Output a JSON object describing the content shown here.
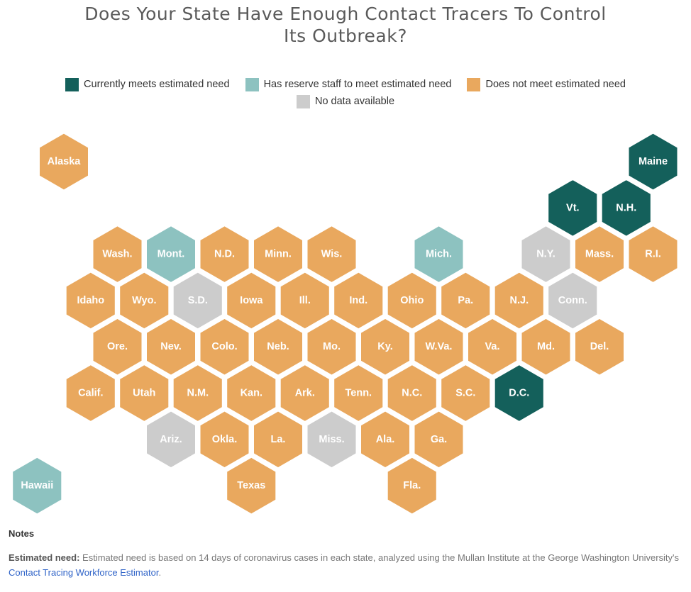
{
  "title_line1": "Does Your State Have Enough Contact Tracers To Control",
  "title_line2": "Its Outbreak?",
  "colors": {
    "meets": "#14605b",
    "reserve": "#8dc2c0",
    "not_meets": "#e9a85e",
    "no_data": "#cccccc"
  },
  "legend": {
    "meets": "Currently meets estimated need",
    "reserve": "Has reserve staff to meet estimated need",
    "not_meets": "Does not meet estimated need",
    "no_data": "No data available"
  },
  "states": [
    {
      "label": "Alaska",
      "row": 0,
      "col": 0,
      "status": "not_meets"
    },
    {
      "label": "Maine",
      "row": 0,
      "col": 11,
      "status": "meets"
    },
    {
      "label": "Vt.",
      "row": 1,
      "col": 10,
      "status": "meets"
    },
    {
      "label": "N.H.",
      "row": 1,
      "col": 11,
      "status": "meets"
    },
    {
      "label": "Wash.",
      "row": 2,
      "col": 1,
      "status": "not_meets"
    },
    {
      "label": "Mont.",
      "row": 2,
      "col": 2,
      "status": "reserve"
    },
    {
      "label": "N.D.",
      "row": 2,
      "col": 3,
      "status": "not_meets"
    },
    {
      "label": "Minn.",
      "row": 2,
      "col": 4,
      "status": "not_meets"
    },
    {
      "label": "Wis.",
      "row": 2,
      "col": 5,
      "status": "not_meets"
    },
    {
      "label": "Mich.",
      "row": 2,
      "col": 7,
      "status": "reserve"
    },
    {
      "label": "N.Y.",
      "row": 2,
      "col": 9,
      "status": "no_data"
    },
    {
      "label": "Mass.",
      "row": 2,
      "col": 10,
      "status": "not_meets"
    },
    {
      "label": "R.I.",
      "row": 2,
      "col": 11,
      "status": "not_meets"
    },
    {
      "label": "Idaho",
      "row": 3,
      "col": 1,
      "status": "not_meets"
    },
    {
      "label": "Wyo.",
      "row": 3,
      "col": 2,
      "status": "not_meets"
    },
    {
      "label": "S.D.",
      "row": 3,
      "col": 3,
      "status": "no_data"
    },
    {
      "label": "Iowa",
      "row": 3,
      "col": 4,
      "status": "not_meets"
    },
    {
      "label": "Ill.",
      "row": 3,
      "col": 5,
      "status": "not_meets"
    },
    {
      "label": "Ind.",
      "row": 3,
      "col": 6,
      "status": "not_meets"
    },
    {
      "label": "Ohio",
      "row": 3,
      "col": 7,
      "status": "not_meets"
    },
    {
      "label": "Pa.",
      "row": 3,
      "col": 8,
      "status": "not_meets"
    },
    {
      "label": "N.J.",
      "row": 3,
      "col": 9,
      "status": "not_meets"
    },
    {
      "label": "Conn.",
      "row": 3,
      "col": 10,
      "status": "no_data"
    },
    {
      "label": "Ore.",
      "row": 4,
      "col": 1,
      "status": "not_meets"
    },
    {
      "label": "Nev.",
      "row": 4,
      "col": 2,
      "status": "not_meets"
    },
    {
      "label": "Colo.",
      "row": 4,
      "col": 3,
      "status": "not_meets"
    },
    {
      "label": "Neb.",
      "row": 4,
      "col": 4,
      "status": "not_meets"
    },
    {
      "label": "Mo.",
      "row": 4,
      "col": 5,
      "status": "not_meets"
    },
    {
      "label": "Ky.",
      "row": 4,
      "col": 6,
      "status": "not_meets"
    },
    {
      "label": "W.Va.",
      "row": 4,
      "col": 7,
      "status": "not_meets"
    },
    {
      "label": "Va.",
      "row": 4,
      "col": 8,
      "status": "not_meets"
    },
    {
      "label": "Md.",
      "row": 4,
      "col": 9,
      "status": "not_meets"
    },
    {
      "label": "Del.",
      "row": 4,
      "col": 10,
      "status": "not_meets"
    },
    {
      "label": "Calif.",
      "row": 5,
      "col": 1,
      "status": "not_meets"
    },
    {
      "label": "Utah",
      "row": 5,
      "col": 2,
      "status": "not_meets"
    },
    {
      "label": "N.M.",
      "row": 5,
      "col": 3,
      "status": "not_meets"
    },
    {
      "label": "Kan.",
      "row": 5,
      "col": 4,
      "status": "not_meets"
    },
    {
      "label": "Ark.",
      "row": 5,
      "col": 5,
      "status": "not_meets"
    },
    {
      "label": "Tenn.",
      "row": 5,
      "col": 6,
      "status": "not_meets"
    },
    {
      "label": "N.C.",
      "row": 5,
      "col": 7,
      "status": "not_meets"
    },
    {
      "label": "S.C.",
      "row": 5,
      "col": 8,
      "status": "not_meets"
    },
    {
      "label": "D.C.",
      "row": 5,
      "col": 9,
      "status": "meets"
    },
    {
      "label": "Ariz.",
      "row": 6,
      "col": 2,
      "status": "no_data"
    },
    {
      "label": "Okla.",
      "row": 6,
      "col": 3,
      "status": "not_meets"
    },
    {
      "label": "La.",
      "row": 6,
      "col": 4,
      "status": "not_meets"
    },
    {
      "label": "Miss.",
      "row": 6,
      "col": 5,
      "status": "no_data"
    },
    {
      "label": "Ala.",
      "row": 6,
      "col": 6,
      "status": "not_meets"
    },
    {
      "label": "Ga.",
      "row": 6,
      "col": 7,
      "status": "not_meets"
    },
    {
      "label": "Hawaii",
      "row": 7,
      "col": 0,
      "status": "reserve"
    },
    {
      "label": "Texas",
      "row": 7,
      "col": 4,
      "status": "not_meets"
    },
    {
      "label": "Fla.",
      "row": 7,
      "col": 7,
      "status": "not_meets"
    }
  ],
  "notes": {
    "heading": "Notes",
    "label": "Estimated need:",
    "text1": " Estimated need is based on 14 days of coronavirus cases in each state, analyzed using the Mullan Institute at the George Washington University's ",
    "link_text": "Contact Tracing Workforce Estimator",
    "text2": "."
  }
}
